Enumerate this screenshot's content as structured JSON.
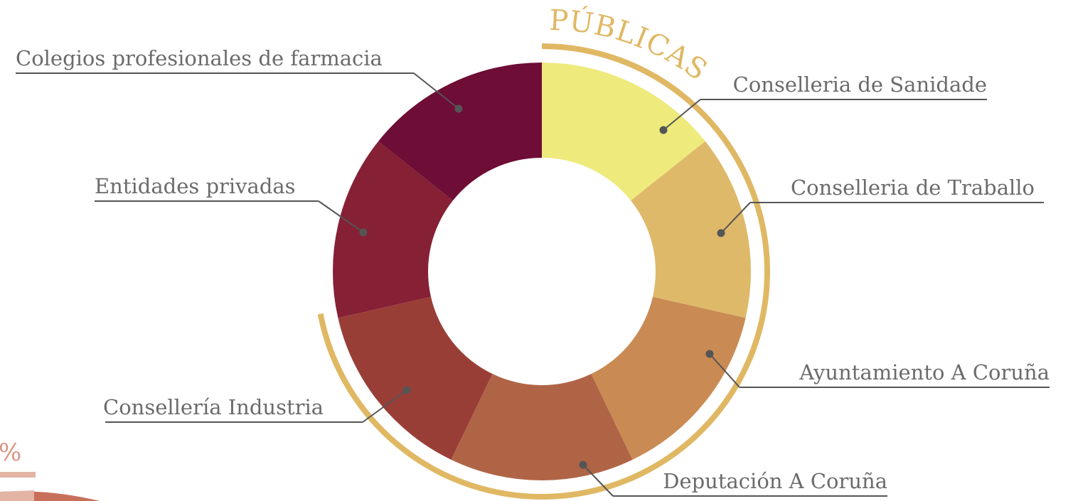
{
  "chart_data": {
    "type": "donut",
    "categories": [
      "Conselleria de Sanidade",
      "Conselleria de Traballo",
      "Ayuntamiento A Coruña",
      "Deputación A Coruña",
      "Consellería Industria",
      "Entidades privadas",
      "Colegios profesionales de farmacia"
    ],
    "values": [
      14.3,
      14.3,
      14.3,
      14.3,
      14.3,
      14.3,
      14.3
    ],
    "colors": [
      "#eeea7c",
      "#dfb96a",
      "#c98b53",
      "#b06446",
      "#993e37",
      "#862035",
      "#6e0d36"
    ],
    "group_annotation": {
      "label": "PÚBLICAS",
      "color": "#e0b864",
      "members": 5
    },
    "fragment_label": "%"
  }
}
